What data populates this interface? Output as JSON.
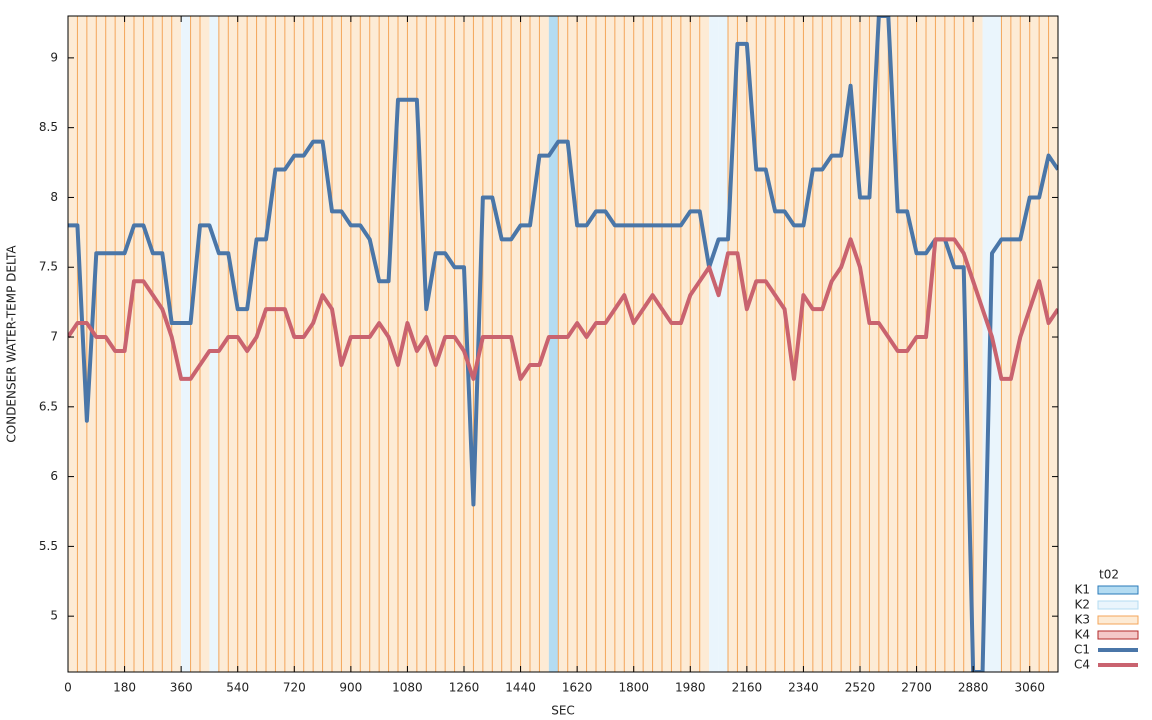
{
  "chart_data": {
    "type": "line",
    "xlabel": "SEC",
    "ylabel": "CONDENSER WATER-TEMP DELTA",
    "legend_title": "t02",
    "x": [
      0,
      30,
      60,
      90,
      120,
      150,
      180,
      210,
      240,
      270,
      300,
      330,
      360,
      390,
      420,
      450,
      480,
      510,
      540,
      570,
      600,
      630,
      660,
      690,
      720,
      750,
      780,
      810,
      840,
      870,
      900,
      930,
      960,
      990,
      1020,
      1050,
      1080,
      1110,
      1140,
      1170,
      1200,
      1230,
      1260,
      1290,
      1320,
      1350,
      1380,
      1410,
      1440,
      1470,
      1500,
      1530,
      1560,
      1590,
      1620,
      1650,
      1680,
      1710,
      1740,
      1770,
      1800,
      1830,
      1860,
      1890,
      1920,
      1950,
      1980,
      2010,
      2040,
      2070,
      2100,
      2130,
      2160,
      2190,
      2220,
      2250,
      2280,
      2310,
      2340,
      2370,
      2400,
      2430,
      2460,
      2490,
      2520,
      2550,
      2580,
      2610,
      2640,
      2670,
      2700,
      2730,
      2760,
      2790,
      2820,
      2850,
      2880,
      2910,
      2940,
      2970,
      3000,
      3030,
      3060,
      3090,
      3120,
      3150
    ],
    "series": [
      {
        "name": "C1",
        "color": "#4a76a8",
        "values": [
          7.8,
          7.8,
          6.4,
          7.6,
          7.6,
          7.6,
          7.6,
          7.8,
          7.8,
          7.6,
          7.6,
          7.1,
          7.1,
          7.1,
          7.8,
          7.8,
          7.6,
          7.6,
          7.2,
          7.2,
          7.7,
          7.7,
          8.2,
          8.2,
          8.3,
          8.3,
          8.4,
          8.4,
          7.9,
          7.9,
          7.8,
          7.8,
          7.7,
          7.4,
          7.4,
          8.7,
          8.7,
          8.7,
          7.2,
          7.6,
          7.6,
          7.5,
          7.5,
          5.8,
          8.0,
          8.0,
          7.7,
          7.7,
          7.8,
          7.8,
          8.3,
          8.3,
          8.4,
          8.4,
          7.8,
          7.8,
          7.9,
          7.9,
          7.8,
          7.8,
          7.8,
          7.8,
          7.8,
          7.8,
          7.8,
          7.8,
          7.9,
          7.9,
          7.5,
          7.7,
          7.7,
          9.1,
          9.1,
          8.2,
          8.2,
          7.9,
          7.9,
          7.8,
          7.8,
          8.2,
          8.2,
          8.3,
          8.3,
          8.8,
          8.0,
          8.0,
          9.3,
          9.3,
          7.9,
          7.9,
          7.6,
          7.6,
          7.7,
          7.7,
          7.5,
          7.5,
          4.6,
          4.6,
          7.6,
          7.7,
          7.7,
          7.7,
          8.0,
          8.0,
          8.3,
          8.2
        ]
      },
      {
        "name": "C4",
        "color": "#c9636f",
        "values": [
          7.0,
          7.1,
          7.1,
          7.0,
          7.0,
          6.9,
          6.9,
          7.4,
          7.4,
          7.3,
          7.2,
          7.0,
          6.7,
          6.7,
          6.8,
          6.9,
          6.9,
          7.0,
          7.0,
          6.9,
          7.0,
          7.2,
          7.2,
          7.2,
          7.0,
          7.0,
          7.1,
          7.3,
          7.2,
          6.8,
          7.0,
          7.0,
          7.0,
          7.1,
          7.0,
          6.8,
          7.1,
          6.9,
          7.0,
          6.8,
          7.0,
          7.0,
          6.9,
          6.7,
          7.0,
          7.0,
          7.0,
          7.0,
          6.7,
          6.8,
          6.8,
          7.0,
          7.0,
          7.0,
          7.1,
          7.0,
          7.1,
          7.1,
          7.2,
          7.3,
          7.1,
          7.2,
          7.3,
          7.2,
          7.1,
          7.1,
          7.3,
          7.4,
          7.5,
          7.3,
          7.6,
          7.6,
          7.2,
          7.4,
          7.4,
          7.3,
          7.2,
          6.7,
          7.3,
          7.2,
          7.2,
          7.4,
          7.5,
          7.7,
          7.5,
          7.1,
          7.1,
          7.0,
          6.9,
          6.9,
          7.0,
          7.0,
          7.7,
          7.7,
          7.7,
          7.6,
          7.4,
          7.2,
          7.0,
          6.7,
          6.7,
          7.0,
          7.2,
          7.4,
          7.1,
          7.2
        ]
      }
    ],
    "bands": {
      "legend": [
        {
          "name": "K1",
          "color": "#b4dcf2",
          "border": "#2a7ab8"
        },
        {
          "name": "K2",
          "color": "#eaf5fc",
          "border": "#b4dcf2"
        },
        {
          "name": "K3",
          "color": "#fdebd5",
          "border": "#f4a65a"
        },
        {
          "name": "K4",
          "color": "#f4c8c8",
          "border": "#b22a2a"
        }
      ],
      "states": [
        "K3",
        "K3",
        "K3",
        "K3",
        "K3",
        "K3",
        "K3",
        "K3",
        "K3",
        "K3",
        "K3",
        "K3",
        "K2",
        "K3",
        "K3",
        "K2",
        "K3",
        "K3",
        "K3",
        "K3",
        "K3",
        "K3",
        "K3",
        "K3",
        "K3",
        "K3",
        "K3",
        "K3",
        "K3",
        "K3",
        "K3",
        "K3",
        "K3",
        "K3",
        "K3",
        "K3",
        "K3",
        "K3",
        "K3",
        "K3",
        "K3",
        "K3",
        "K3",
        "K3",
        "K3",
        "K3",
        "K3",
        "K3",
        "K3",
        "K3",
        "K3",
        "K1",
        "K3",
        "K3",
        "K3",
        "K3",
        "K3",
        "K3",
        "K3",
        "K3",
        "K3",
        "K3",
        "K3",
        "K3",
        "K3",
        "K3",
        "K3",
        "K3",
        "K2",
        "K2",
        "K3",
        "K3",
        "K3",
        "K3",
        "K3",
        "K3",
        "K3",
        "K3",
        "K3",
        "K3",
        "K3",
        "K3",
        "K3",
        "K3",
        "K3",
        "K3",
        "K3",
        "K3",
        "K3",
        "K3",
        "K3",
        "K3",
        "K3",
        "K3",
        "K3",
        "K3",
        "K3",
        "K2",
        "K2",
        "K3",
        "K3",
        "K3",
        "K3",
        "K3",
        "K3"
      ]
    },
    "xlim": [
      0,
      3150
    ],
    "ylim": [
      4.6,
      9.3
    ],
    "xticks": [
      0,
      180,
      360,
      540,
      720,
      900,
      1080,
      1260,
      1440,
      1620,
      1800,
      1980,
      2160,
      2340,
      2520,
      2700,
      2880,
      3060
    ],
    "yticks": [
      5,
      5.5,
      6,
      6.5,
      7,
      7.5,
      8,
      8.5,
      9
    ]
  }
}
